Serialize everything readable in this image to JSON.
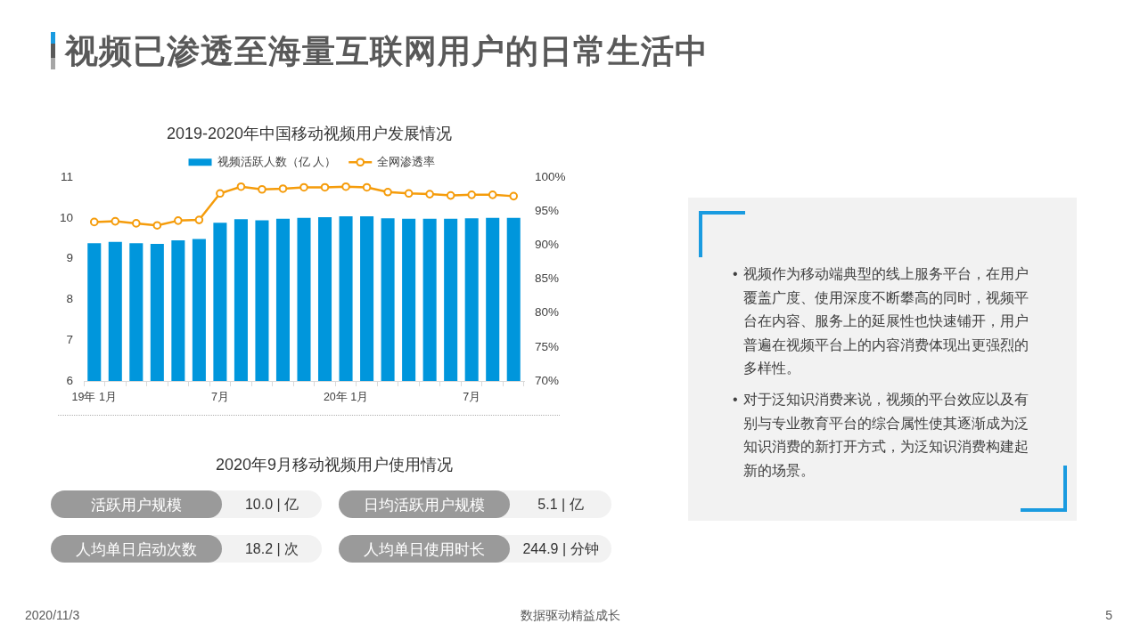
{
  "chart_data": [
    {
      "type": "bar",
      "title": "视频已渗透至海量互联网用户的日常生活中",
      "subtitle": "2019-2020年中国移动视频用户发展情况",
      "categories": [
        "19年 1月",
        null,
        null,
        null,
        null,
        null,
        "7月",
        null,
        null,
        null,
        null,
        null,
        "20年 1月",
        null,
        null,
        null,
        null,
        null,
        "7月",
        null,
        null
      ],
      "series": [
        {
          "name": "视频活跃人数（亿 人）",
          "type": "bar",
          "color": "#0096dc",
          "values": [
            9.38,
            9.41,
            9.38,
            9.36,
            9.45,
            9.48,
            9.88,
            9.97,
            9.94,
            9.98,
            10.0,
            10.02,
            10.04,
            10.04,
            9.99,
            9.98,
            9.98,
            9.98,
            9.99,
            10.0,
            10.0
          ]
        },
        {
          "name": "全网渗透率",
          "type": "line",
          "axis": "y2",
          "color": "#f59c0b",
          "values": [
            93.4,
            93.5,
            93.2,
            92.9,
            93.6,
            93.7,
            97.6,
            98.6,
            98.2,
            98.3,
            98.5,
            98.5,
            98.6,
            98.5,
            97.8,
            97.6,
            97.5,
            97.3,
            97.4,
            97.4,
            97.2
          ]
        }
      ],
      "ylim": [
        6,
        11
      ],
      "yticks": [
        6,
        7,
        8,
        9,
        10,
        11
      ],
      "y2lim": [
        70,
        100
      ],
      "y2ticks": [
        {
          "value": 70,
          "label": "70%"
        },
        {
          "value": 75,
          "label": "75%"
        },
        {
          "value": 80,
          "label": "80%"
        },
        {
          "value": 85,
          "label": "85%"
        },
        {
          "value": 90,
          "label": "90%"
        },
        {
          "value": 95,
          "label": "95%"
        },
        {
          "value": 100,
          "label": "100%"
        }
      ],
      "legend": "top",
      "marker": "circle",
      "annotations": [
        "2020/11/3",
        "数据驱动精益成长",
        "5"
      ]
    },
    {
      "type": "other",
      "title": "2020年9月移动视频用户使用情况",
      "annotations": [
        "活跃用户规模",
        "10.0 | 亿",
        "日均活跃用户规模",
        "5.1 | 亿",
        "人均单日启动次数",
        "18.2 | 次",
        "人均单日使用时长",
        "244.9 | 分钟"
      ]
    },
    {
      "type": "other",
      "annotations": [
        "• 视频作为移动端典型的线上服务平台，在用户覆盖广度、使用深度不断攀高的同时，视频平台在内容、服务上的延展性也快速铺开，用户普遍在视频平台上的内容消费体现出更强烈的多样性。",
        "• 对于泛知识消费来说，视频的平台效应以及有别与专业教育平台的综合属性使其逐渐成为泛知识消费的新打开方式，为泛知识消费构建起新的场景。"
      ]
    }
  ]
}
